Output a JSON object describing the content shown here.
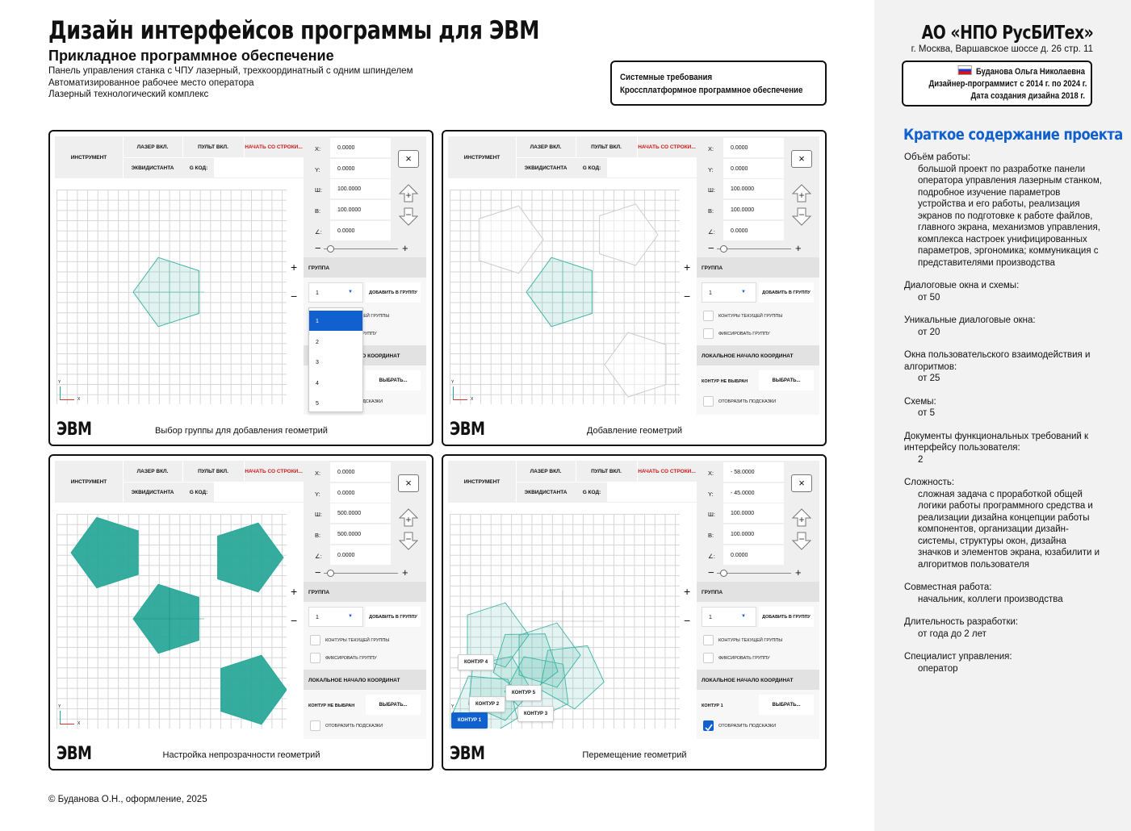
{
  "header": {
    "title": "Дизайн интерфейсов программы для ЭВМ",
    "subtitle": "Прикладное программное обеспечение",
    "lines": [
      "Панель управления станка с ЧПУ лазерный, трехкоординатный с одним шпинделем",
      "Автоматизированное рабочее место оператора",
      "Лазерный технологический комплекс"
    ]
  },
  "sysreq": {
    "line1": "Системные требования",
    "line2": "Кроссплатформное программное обеспечение"
  },
  "org": {
    "name": "АО «НПО РусБИТех»",
    "address": "г. Москва, Варшавское шоссе д. 26 стр. 11"
  },
  "author": {
    "name": "Буданова Ольга Николаевна",
    "role": "Дизайнер-программист с 2014 г. по 2024 г.",
    "date": "Дата создания дизайна 2018 г."
  },
  "summary": {
    "title": "Краткое содержание проекта",
    "blocks": [
      {
        "label": "Объём работы:",
        "value": "большой проект по разработке панели оператора управления лазерным станком, подробное изучение параметров устройства и его работы, реализация экранов по подготовке к работе файлов, главного экрана, механизмов управления, комплекса настроек унифицированных параметров, эргономика; коммуникация с представителями производства"
      },
      {
        "label": "Диалоговые окна и схемы:",
        "value": "от 50"
      },
      {
        "label": "Уникальные диалоговые окна:",
        "value": "от 20"
      },
      {
        "label": "Окна пользовательского взаимодействия и алгоритмов:",
        "value": "от 25"
      },
      {
        "label": "Схемы:",
        "value": "от 5"
      },
      {
        "label": "Документы функциональных требований к интерфейсу пользователя:",
        "value": "2"
      },
      {
        "label": "Сложность:",
        "value": "сложная задача с проработкой общей логики работы программного средства и реализации дизайна концепции работы компонентов, организации дизайн-системы, структуры окон, дизайна значков и элементов экрана, юзабилити и алгоритмов пользователя"
      },
      {
        "label": "Совместная работа:",
        "value": "начальник, коллеги производства"
      },
      {
        "label": "Длительность разработки:",
        "value": "от года до 2 лет"
      },
      {
        "label": "Специалист управления:",
        "value": "оператор"
      }
    ]
  },
  "copyright": "© Буданова О.Н., оформление, 2025",
  "ui": {
    "tool": "ИНСТРУМЕНТ",
    "laser_on": "ЛАЗЕР ВКЛ.",
    "panel_on": "ПУЛЬТ ВКЛ.",
    "start_from": "НАЧАТЬ СО СТРОКИ...",
    "equidistant": "ЭКВИДИСТАНТА",
    "gcode": "G КОД:",
    "lbl_x": "X:",
    "lbl_y": "Y:",
    "lbl_w": "Ш:",
    "lbl_h": "В:",
    "lbl_angle": "∠:",
    "close": "×",
    "group": "ГРУППА",
    "add_to_group": "ДОБАВИТЬ В ГРУППУ",
    "contours_current": "КОНТУРЫ ТЕКУЩЕЙ ГРУППЫ",
    "fix_group": "ФИКСИРОВАТЬ ГРУППУ",
    "local_origin": "ЛОКАЛЬНОЕ НАЧАЛО КООРДИНАТ",
    "contour_not_selected": "КОНТУР НЕ ВЫБРАН",
    "choose": "ВЫБРАТЬ...",
    "show_hints": "ОТОБРАЗИТЬ ПОДСКАЗКИ",
    "evm": "ЭВМ",
    "plus": "+",
    "minus": "−",
    "axis_x": "X",
    "axis_y": "Y"
  },
  "screens": [
    {
      "caption": "Выбор группы для добавления геометрий",
      "x": "0.0000",
      "y": "0.0000",
      "w": "100.0000",
      "h": "100.0000",
      "angle": "0.0000",
      "group_value": "1",
      "dropdown": [
        "1",
        "2",
        "3",
        "4",
        "5"
      ],
      "contour_label": "КОНТУР НЕ ВЫБРАН"
    },
    {
      "caption": "Добавление геометрий",
      "x": "0.0000",
      "y": "0.0000",
      "w": "100.0000",
      "h": "100.0000",
      "angle": "0.0000",
      "group_value": "1",
      "contour_label": "КОНТУР НЕ ВЫБРАН"
    },
    {
      "caption": "Настройка непрозрачности геометрий",
      "x": "0.0000",
      "y": "0.0000",
      "w": "500.0000",
      "h": "500.0000",
      "angle": "0.0000",
      "group_value": "1",
      "contour_label": "КОНТУР НЕ ВЫБРАН"
    },
    {
      "caption": "Перемещение геометрий",
      "x": "- 58.0000",
      "y": "- 45.0000",
      "w": "100.0000",
      "h": "100.0000",
      "angle": "0.0000",
      "group_value": "1",
      "contour_label": "КОНТУР 1",
      "tags": [
        "КОНТУР 4",
        "КОНТУР 5",
        "КОНТУР 2",
        "КОНТУР 3",
        "КОНТУР 1"
      ]
    }
  ],
  "colors": {
    "accent": "#1060d0",
    "shape_fill": "#2aa898",
    "shape_stroke": "#3fb5a4",
    "red_link": "#cc1a1a"
  }
}
